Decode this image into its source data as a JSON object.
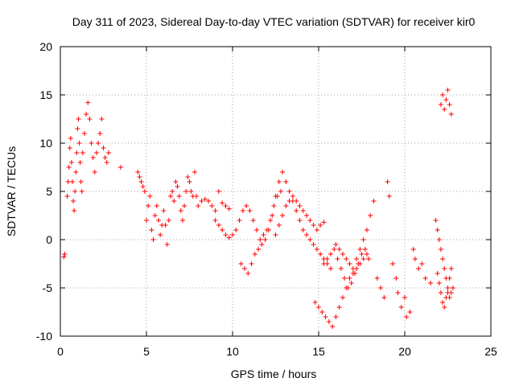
{
  "chart_data": {
    "type": "scatter",
    "title": "Day 311 of 2023, Sidereal Day-to-day VTEC variation (SDTVAR) for receiver kir0",
    "xlabel": "GPS time / hours",
    "ylabel": "SDTVAR / TECUs",
    "xlim": [
      0,
      25
    ],
    "ylim": [
      -10,
      20
    ],
    "xticks": [
      0,
      5,
      10,
      15,
      20,
      25
    ],
    "yticks": [
      -10,
      -5,
      0,
      5,
      10,
      15,
      20
    ],
    "grid": true,
    "marker": "+",
    "color": "#ff0000",
    "series": [
      {
        "name": "SDTVAR",
        "x": [
          0.2,
          0.25,
          0.4,
          0.45,
          0.5,
          0.55,
          0.6,
          0.65,
          0.7,
          0.75,
          0.8,
          0.85,
          0.9,
          0.95,
          1.0,
          1.05,
          1.1,
          1.15,
          1.2,
          1.25,
          1.3,
          1.4,
          1.5,
          1.6,
          1.7,
          1.8,
          1.9,
          2.0,
          2.1,
          2.2,
          2.3,
          2.4,
          2.5,
          2.6,
          2.7,
          2.8,
          3.5,
          4.5,
          4.6,
          4.7,
          4.8,
          4.9,
          5.0,
          5.1,
          5.2,
          5.3,
          5.4,
          5.5,
          5.6,
          5.7,
          5.8,
          5.9,
          6.0,
          6.1,
          6.2,
          6.3,
          6.4,
          6.5,
          6.6,
          6.7,
          6.8,
          6.9,
          7.0,
          7.1,
          7.2,
          7.3,
          7.4,
          7.5,
          7.6,
          7.7,
          7.8,
          7.9,
          8.0,
          8.2,
          8.4,
          8.6,
          8.8,
          9.0,
          9.2,
          9.4,
          9.6,
          9.8,
          9.0,
          9.2,
          9.4,
          9.6,
          9.8,
          10.0,
          10.2,
          10.4,
          10.6,
          10.8,
          11.0,
          11.2,
          11.4,
          11.6,
          11.8,
          12.0,
          12.2,
          12.4,
          12.6,
          12.8,
          10.5,
          10.7,
          10.9,
          11.1,
          11.3,
          11.5,
          11.7,
          11.9,
          12.1,
          12.3,
          12.5,
          12.7,
          12.9,
          13.1,
          13.3,
          13.5,
          13.7,
          13.9,
          14.1,
          14.3,
          14.5,
          14.7,
          14.9,
          15.1,
          15.3,
          15.5,
          15.7,
          12.5,
          12.7,
          12.9,
          13.1,
          13.3,
          13.5,
          13.7,
          13.9,
          14.1,
          14.3,
          14.5,
          14.7,
          14.9,
          15.1,
          15.3,
          14.8,
          15.0,
          15.2,
          15.4,
          15.6,
          15.8,
          16.0,
          16.2,
          16.4,
          16.6,
          16.8,
          17.0,
          17.2,
          17.4,
          17.6,
          17.8,
          15.3,
          15.5,
          15.7,
          15.9,
          16.1,
          16.3,
          16.5,
          16.7,
          16.9,
          17.1,
          17.3,
          17.5,
          17.7,
          17.9,
          16.0,
          16.2,
          16.4,
          16.6,
          16.8,
          17.0,
          17.2,
          17.4,
          17.6,
          17.8,
          18.0,
          18.2,
          18.4,
          18.6,
          18.8,
          19.0,
          19.1,
          19.3,
          19.5,
          19.6,
          19.8,
          20.0,
          20.1,
          20.3,
          20.5,
          20.6,
          20.8,
          21.0,
          21.2,
          21.5,
          21.8,
          21.9,
          22.0,
          22.1,
          22.2,
          22.3,
          22.4,
          22.5,
          22.6,
          22.7,
          22.8,
          21.9,
          22.0,
          22.1,
          22.2,
          22.3,
          22.4,
          22.5,
          22.6,
          22.7,
          22.1,
          22.2,
          22.3,
          22.4,
          22.5,
          22.6,
          22.7
        ],
        "y": [
          -1.8,
          -1.5,
          4.5,
          6.0,
          7.5,
          9.5,
          10.5,
          8.0,
          6.0,
          4.0,
          3.0,
          5.0,
          7.0,
          9.0,
          11.5,
          12.5,
          10.0,
          8.0,
          6.0,
          5.0,
          9.0,
          11.0,
          13.0,
          14.2,
          12.5,
          10.0,
          8.5,
          7.0,
          9.0,
          10.0,
          11.0,
          12.5,
          9.5,
          8.5,
          8.0,
          9.0,
          7.5,
          7.0,
          6.5,
          6.0,
          5.5,
          5.0,
          2.0,
          3.5,
          4.5,
          1.0,
          0.0,
          2.5,
          3.5,
          2.0,
          0.5,
          1.5,
          3.0,
          1.5,
          -0.5,
          2.0,
          4.5,
          5.0,
          4.0,
          6.0,
          5.5,
          4.5,
          3.0,
          2.0,
          3.5,
          5.0,
          6.5,
          6.0,
          5.0,
          4.5,
          7.0,
          4.5,
          3.5,
          4.0,
          4.2,
          4.0,
          3.5,
          3.0,
          5.0,
          3.8,
          3.5,
          3.2,
          2.0,
          1.5,
          1.0,
          0.5,
          0.2,
          0.5,
          1.0,
          2.0,
          3.0,
          3.5,
          3.0,
          2.0,
          1.0,
          0.0,
          0.5,
          1.0,
          2.0,
          3.5,
          4.5,
          5.0,
          -2.5,
          -3.0,
          -3.5,
          -2.5,
          -1.5,
          -1.0,
          -0.5,
          0.0,
          1.0,
          2.5,
          4.5,
          6.0,
          7.0,
          6.0,
          5.0,
          4.0,
          3.0,
          2.0,
          1.0,
          0.5,
          0.0,
          -0.5,
          -1.0,
          -1.5,
          -2.0,
          -2.5,
          -3.0,
          0.5,
          1.5,
          2.5,
          3.5,
          4.0,
          4.5,
          4.0,
          3.5,
          3.0,
          2.5,
          2.0,
          1.5,
          1.0,
          1.5,
          1.8,
          -6.5,
          -7.0,
          -7.5,
          -8.0,
          -8.5,
          -9.0,
          -8.0,
          -7.0,
          -6.0,
          -5.0,
          -4.0,
          -3.5,
          -3.0,
          -2.5,
          -2.0,
          -1.5,
          -2.5,
          -2.0,
          -1.5,
          -1.0,
          -2.0,
          -3.0,
          -4.0,
          -5.0,
          -4.5,
          -3.5,
          -2.5,
          -1.5,
          -1.0,
          -2.0,
          -0.5,
          -1.0,
          -1.5,
          -2.0,
          -2.5,
          -3.0,
          -2.0,
          -1.0,
          0.0,
          1.0,
          2.5,
          4.0,
          -4.0,
          -5.0,
          -6.0,
          6.0,
          4.5,
          -2.5,
          -4.0,
          -5.5,
          -7.0,
          -6.0,
          -8.0,
          -7.5,
          -1.0,
          -2.0,
          -3.0,
          -2.5,
          -4.0,
          -4.5,
          2.0,
          1.0,
          0.0,
          -1.0,
          -2.0,
          -3.0,
          -4.0,
          -5.0,
          -6.0,
          -5.5,
          -5.0,
          -3.5,
          -4.5,
          -5.5,
          -6.5,
          -7.0,
          -6.0,
          -5.5,
          -4.0,
          -3.0,
          14.0,
          15.0,
          13.5,
          14.5,
          15.5,
          14.0,
          13.0
        ]
      }
    ]
  }
}
